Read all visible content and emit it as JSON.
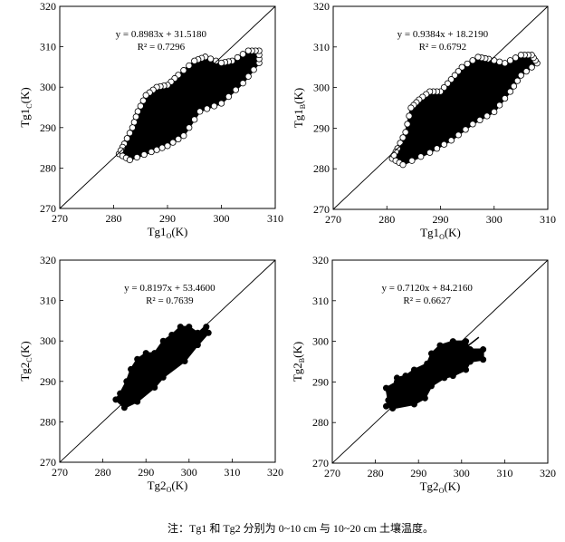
{
  "chart_data": [
    {
      "type": "scatter",
      "xlabel": {
        "base": "Tg1",
        "sub": "O",
        "unit": "(K)"
      },
      "ylabel": {
        "base": "Tg1",
        "sub": "C",
        "unit": "(K)"
      },
      "xlim": [
        270,
        310
      ],
      "ylim": [
        270,
        320
      ],
      "xticks": [
        270,
        280,
        290,
        300,
        310
      ],
      "yticks": [
        270,
        280,
        290,
        300,
        310,
        320
      ],
      "equation": "y = 0.8983x + 31.5180",
      "r2_label": "R² = 0.7296",
      "marker": "hollow-circle",
      "grid": false,
      "reference_line": "1:1 diagonal",
      "cloud_outline": [
        [
          281,
          283.5
        ],
        [
          283,
          282
        ],
        [
          287,
          284
        ],
        [
          290,
          285.5
        ],
        [
          293,
          288
        ],
        [
          296,
          294
        ],
        [
          300,
          296
        ],
        [
          304,
          301
        ],
        [
          307,
          306
        ],
        [
          307,
          309
        ],
        [
          305,
          309
        ],
        [
          302,
          306.5
        ],
        [
          300,
          306
        ],
        [
          297,
          307.5
        ],
        [
          295,
          306.5
        ],
        [
          292,
          303
        ],
        [
          290,
          300.5
        ],
        [
          288,
          300
        ],
        [
          286,
          298
        ],
        [
          284.5,
          294
        ],
        [
          283.5,
          290
        ],
        [
          282,
          286
        ]
      ]
    },
    {
      "type": "scatter",
      "xlabel": {
        "base": "Tg1",
        "sub": "O",
        "unit": "(K)"
      },
      "ylabel": {
        "base": "Tg1",
        "sub": "B",
        "unit": "(K)"
      },
      "xlim": [
        270,
        310
      ],
      "ylim": [
        270,
        320
      ],
      "xticks": [
        270,
        280,
        290,
        300,
        310
      ],
      "yticks": [
        270,
        280,
        290,
        300,
        310,
        320
      ],
      "equation": "y = 0.9384x + 18.2190",
      "r2_label": "R² = 0.6792",
      "marker": "hollow-circle",
      "grid": false,
      "reference_line": "1:1 diagonal",
      "cloud_outline": [
        [
          281,
          282.5
        ],
        [
          283,
          281
        ],
        [
          288,
          284
        ],
        [
          292,
          287
        ],
        [
          296,
          291
        ],
        [
          300,
          294
        ],
        [
          303,
          299
        ],
        [
          305,
          303
        ],
        [
          308,
          306
        ],
        [
          307,
          308
        ],
        [
          305,
          308
        ],
        [
          302,
          306
        ],
        [
          299,
          307
        ],
        [
          297,
          307.5
        ],
        [
          294,
          305
        ],
        [
          292,
          302
        ],
        [
          290,
          299
        ],
        [
          288,
          299
        ],
        [
          286,
          297
        ],
        [
          284.5,
          295
        ],
        [
          283.5,
          289
        ],
        [
          282,
          285
        ]
      ]
    },
    {
      "type": "scatter",
      "xlabel": {
        "base": "Tg2",
        "sub": "O",
        "unit": "(K)"
      },
      "ylabel": {
        "base": "Tg2",
        "sub": "C",
        "unit": "(K)"
      },
      "xlim": [
        270,
        320
      ],
      "ylim": [
        270,
        320
      ],
      "xticks": [
        270,
        280,
        290,
        300,
        310,
        320
      ],
      "yticks": [
        270,
        280,
        290,
        300,
        310,
        320
      ],
      "equation": "y = 0.8197x + 53.4600",
      "r2_label": "R² = 0.7639",
      "marker": "filled-circle",
      "grid": false,
      "reference_line": "1:1 diagonal",
      "cloud_outline": [
        [
          283,
          285.5
        ],
        [
          285,
          283.5
        ],
        [
          288,
          285
        ],
        [
          292,
          288.5
        ],
        [
          294,
          291
        ],
        [
          299,
          295
        ],
        [
          302,
          299
        ],
        [
          304.5,
          302
        ],
        [
          304,
          303.5
        ],
        [
          302,
          302
        ],
        [
          300,
          303.5
        ],
        [
          298,
          303.5
        ],
        [
          296,
          301.5
        ],
        [
          294,
          300
        ],
        [
          292,
          297
        ],
        [
          290,
          297
        ],
        [
          288,
          295.5
        ],
        [
          286.5,
          293
        ],
        [
          285.5,
          290
        ],
        [
          284,
          287
        ]
      ]
    },
    {
      "type": "scatter",
      "xlabel": {
        "base": "Tg2",
        "sub": "O",
        "unit": "(K)"
      },
      "ylabel": {
        "base": "Tg2",
        "sub": "B",
        "unit": "(K)"
      },
      "xlim": [
        270,
        320
      ],
      "ylim": [
        270,
        320
      ],
      "xticks": [
        270,
        280,
        290,
        300,
        310,
        320
      ],
      "yticks": [
        270,
        280,
        290,
        300,
        310,
        320
      ],
      "equation": "y = 0.7120x + 84.2160",
      "r2_label": "R² = 0.6627",
      "marker": "filled-circle",
      "grid": false,
      "reference_line": "1:1 diagonal",
      "cloud_outline": [
        [
          282.5,
          284
        ],
        [
          283,
          285.5
        ],
        [
          282.5,
          288.5
        ],
        [
          285,
          290
        ],
        [
          285,
          291
        ],
        [
          287,
          291.5
        ],
        [
          289,
          293
        ],
        [
          292,
          294.5
        ],
        [
          293,
          297
        ],
        [
          295,
          299
        ],
        [
          298,
          300
        ],
        [
          301,
          300
        ],
        [
          302,
          298
        ],
        [
          305,
          298
        ],
        [
          305,
          295.5
        ],
        [
          302,
          295
        ],
        [
          301,
          293
        ],
        [
          298,
          291.5
        ],
        [
          296,
          291
        ],
        [
          293,
          289
        ],
        [
          291.5,
          286
        ],
        [
          289,
          284.5
        ],
        [
          284,
          283.5
        ]
      ]
    }
  ],
  "caption": "注：Tg1 和 Tg2 分别为 0~10 cm 与 10~20 cm 土壤温度。"
}
